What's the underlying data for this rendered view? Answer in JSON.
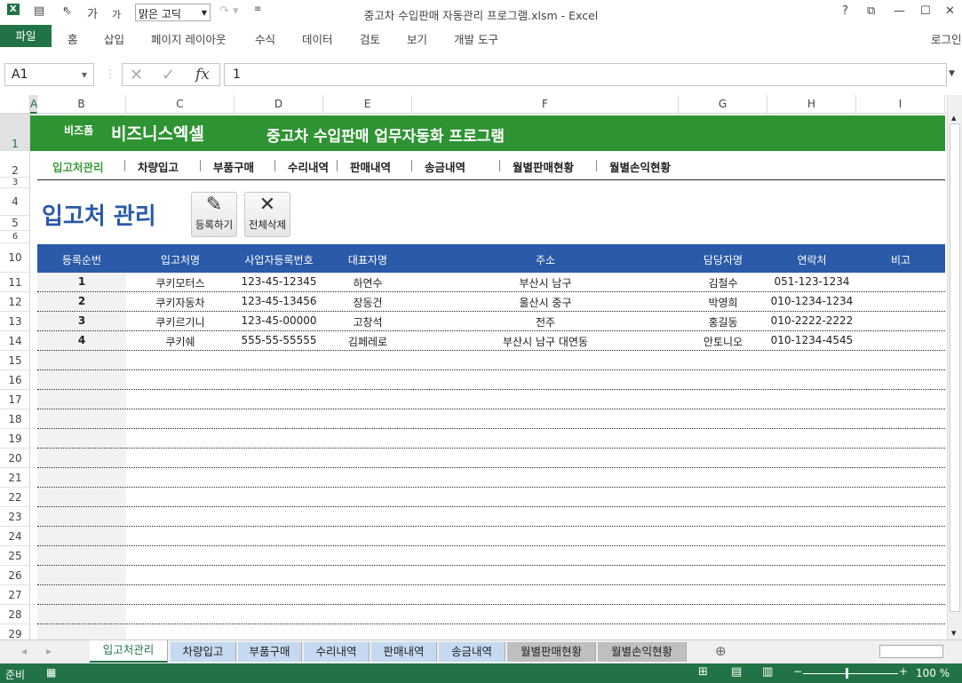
{
  "titlebar": {
    "title": "중고차 수입판매 자동관리 프로그램.xlsm - Excel",
    "font": "맑은 고딕",
    "help": "?",
    "login": "로그인"
  },
  "ribbon": {
    "tabs": [
      "파일",
      "홈",
      "삽입",
      "페이지 레이아웃",
      "수식",
      "데이터",
      "검토",
      "보기",
      "개발 도구"
    ]
  },
  "formula_bar": {
    "name_box": "A1",
    "value": "1",
    "fx": "fx"
  },
  "columns": [
    "A",
    "B",
    "C",
    "D",
    "E",
    "F",
    "G",
    "H",
    "I"
  ],
  "rows": [
    "1",
    "2",
    "3",
    "4",
    "5",
    "6",
    "10",
    "11",
    "12",
    "13",
    "14",
    "15",
    "16",
    "17",
    "18",
    "19",
    "20",
    "21",
    "22",
    "23",
    "24",
    "25",
    "26",
    "27",
    "28",
    "29"
  ],
  "banner": {
    "brand_small": "비즈폼",
    "brand": "비즈니스엑셀",
    "title": "중고차 수입판매 업무자동화 프로그램",
    "color": "#2e9433"
  },
  "nav": {
    "items": [
      "입고처관리",
      "차량입고",
      "부품구매",
      "수리내역",
      "판매내역",
      "송금내역",
      "월별판매현황",
      "월별손익현황"
    ],
    "active": 0,
    "active_color": "#3a9a3a"
  },
  "page": {
    "heading": "입고처 관리",
    "register_label": "등록하기",
    "delete_all_label": "전체삭제"
  },
  "table": {
    "header_color": "#2b5aa8",
    "headers": [
      "등록순번",
      "입고처명",
      "사업자등록번호",
      "대표자명",
      "주소",
      "담당자명",
      "연락처",
      "비고"
    ],
    "rows": [
      [
        "1",
        "쿠키모터스",
        "123-45-12345",
        "하연수",
        "부산시 남구",
        "김철수",
        "051-123-1234",
        ""
      ],
      [
        "2",
        "쿠키자동차",
        "123-45-13456",
        "장동건",
        "울산시 중구",
        "박영희",
        "010-1234-1234",
        ""
      ],
      [
        "3",
        "쿠키르기니",
        "123-45-00000",
        "고창석",
        "전주",
        "홍길동",
        "010-2222-2222",
        ""
      ],
      [
        "4",
        "쿠키쉐",
        "555-55-55555",
        "김페레로",
        "부산시 남구 대연동",
        "안토니오",
        "010-1234-4545",
        ""
      ]
    ]
  },
  "sheet_tabs": {
    "tabs": [
      "입고처관리",
      "차량입고",
      "부품구매",
      "수리내역",
      "판매내역",
      "송금내역",
      "월별판매현황",
      "월별손익현황"
    ],
    "active": 0
  },
  "status": {
    "ready": "준비",
    "zoom": "100 %"
  }
}
